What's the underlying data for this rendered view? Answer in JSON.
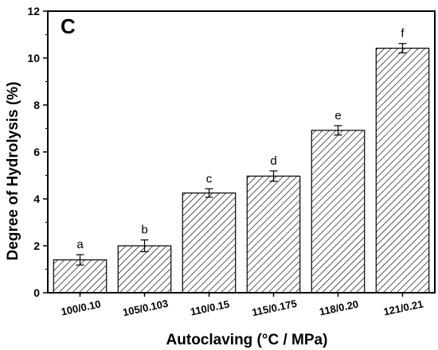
{
  "panel_label": "C",
  "chart_data": {
    "type": "bar",
    "categories": [
      "100/0.10",
      "105/0.103",
      "110/0.15",
      "115/0.175",
      "118/0.20",
      "121/0.21"
    ],
    "values": [
      1.4,
      2.0,
      4.25,
      4.97,
      6.92,
      10.42
    ],
    "errors": [
      0.22,
      0.25,
      0.18,
      0.22,
      0.2,
      0.2
    ],
    "significance_labels": [
      "a",
      "b",
      "c",
      "d",
      "e",
      "f"
    ],
    "xlabel": "Autoclaving (°C / MPa)",
    "ylabel": "Degree of Hydrolysis (%)",
    "ylim": [
      0,
      12
    ],
    "yticks": [
      0,
      2,
      4,
      6,
      8,
      10,
      12
    ],
    "bar_fill": "hatched",
    "colors": {
      "bar_edge": "#000000",
      "hatch": "#000000",
      "background": "#ffffff"
    },
    "grid": false,
    "legend": "none"
  }
}
